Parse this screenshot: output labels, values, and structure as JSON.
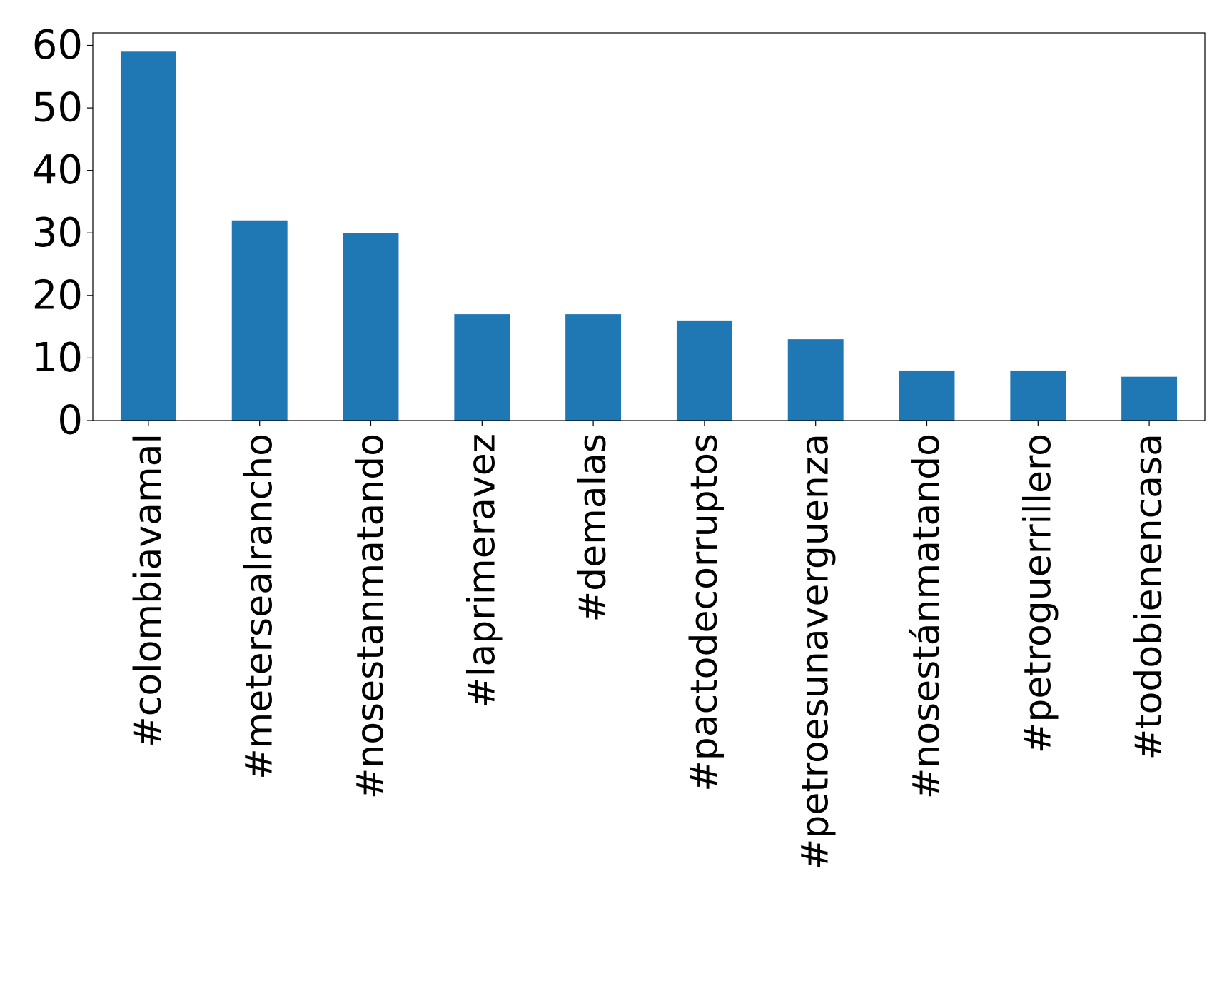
{
  "chart_data": {
    "type": "bar",
    "title": "",
    "xlabel": "",
    "ylabel": "",
    "categories": [
      "#colombiavamal",
      "#metersealrancho",
      "#nosestanmatando",
      "#laprimeravez",
      "#demalas",
      "#pactodecorruptos",
      "#petroesunaverguenza",
      "#nosestánmatando",
      "#petroguerrillero",
      "#todobienencasa"
    ],
    "values": [
      59,
      32,
      30,
      17,
      17,
      16,
      13,
      8,
      8,
      7
    ],
    "ylim": [
      0,
      62
    ],
    "yticks": [
      0,
      10,
      20,
      30,
      40,
      50,
      60
    ],
    "grid": false,
    "legend": "none",
    "bar_color": "#1f77b4"
  }
}
